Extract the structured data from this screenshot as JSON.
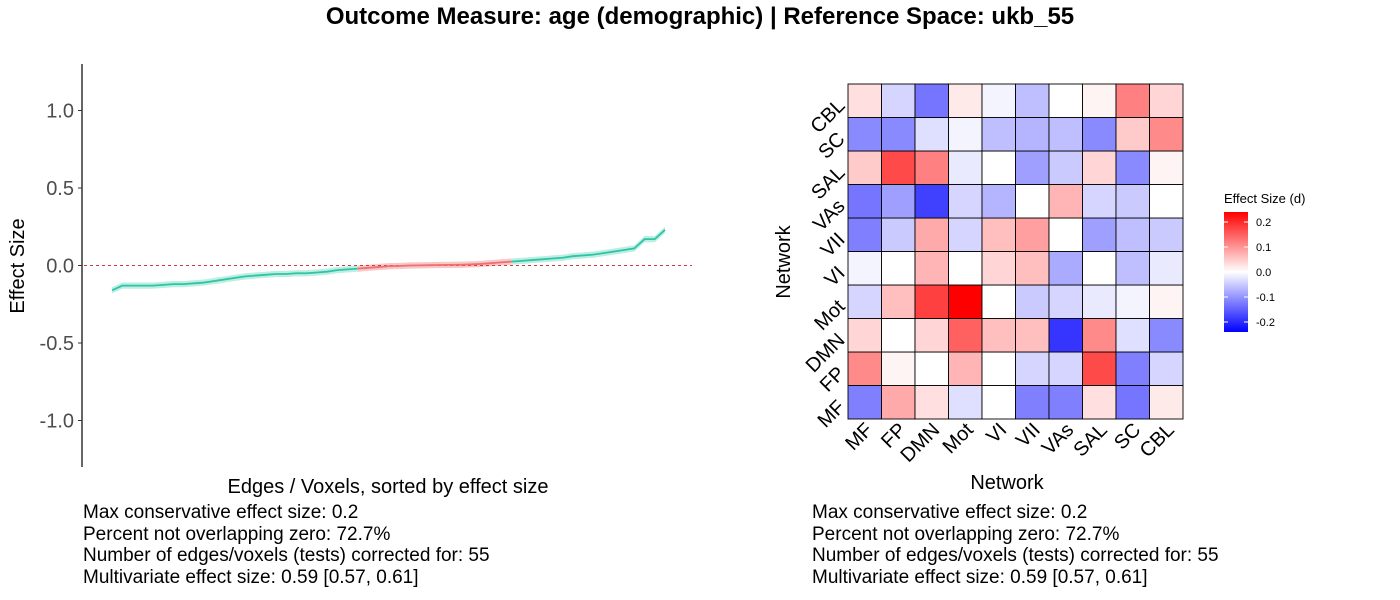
{
  "title": "Outcome Measure: age (demographic)   |  Reference Space: ukb_55",
  "colors": {
    "nonzero_line": "#2ec4a6",
    "nonzero_band": "#bdeee2",
    "zero_line": "#f07070",
    "zero_band": "#f8c7c7",
    "reference_line": "#d43a3a",
    "heat_low": "#0000ff",
    "heat_mid": "#ffffff",
    "heat_high": "#ff0000"
  },
  "chart_data": [
    {
      "type": "line",
      "xlabel": "Edges / Voxels, sorted by effect size",
      "ylabel": "Effect Size",
      "ylim": [
        -1.3,
        1.3
      ],
      "y_ticks": [
        -1.0,
        -0.5,
        0.0,
        0.5,
        1.0
      ],
      "y_tick_labels": [
        "-1.0",
        "-0.5",
        "0.0",
        "0.5",
        "1.0"
      ],
      "reference_line_y": 0,
      "x": [
        1,
        2,
        3,
        4,
        5,
        6,
        7,
        8,
        9,
        10,
        11,
        12,
        13,
        14,
        15,
        16,
        17,
        18,
        19,
        20,
        21,
        22,
        23,
        24,
        25,
        26,
        27,
        28,
        29,
        30,
        31,
        32,
        33,
        34,
        35,
        36,
        37,
        38,
        39,
        40,
        41,
        42,
        43,
        44,
        45,
        46,
        47,
        48,
        49,
        50,
        51,
        52,
        53,
        54,
        55
      ],
      "values": [
        -0.16,
        -0.13,
        -0.13,
        -0.13,
        -0.13,
        -0.125,
        -0.12,
        -0.12,
        -0.115,
        -0.11,
        -0.1,
        -0.09,
        -0.08,
        -0.07,
        -0.065,
        -0.06,
        -0.055,
        -0.055,
        -0.05,
        -0.05,
        -0.045,
        -0.04,
        -0.03,
        -0.025,
        -0.02,
        -0.015,
        -0.01,
        -0.005,
        -0.003,
        0.0,
        0.001,
        0.002,
        0.003,
        0.004,
        0.005,
        0.007,
        0.01,
        0.015,
        0.02,
        0.025,
        0.03,
        0.035,
        0.04,
        0.045,
        0.05,
        0.06,
        0.065,
        0.07,
        0.08,
        0.09,
        0.1,
        0.11,
        0.17,
        0.17,
        0.23
      ],
      "lower": [
        -0.18,
        -0.15,
        -0.15,
        -0.15,
        -0.15,
        -0.145,
        -0.14,
        -0.14,
        -0.135,
        -0.13,
        -0.12,
        -0.11,
        -0.1,
        -0.09,
        -0.085,
        -0.08,
        -0.075,
        -0.075,
        -0.07,
        -0.07,
        -0.065,
        -0.06,
        -0.05,
        -0.045,
        -0.04,
        -0.035,
        -0.03,
        -0.025,
        -0.023,
        -0.02,
        -0.019,
        -0.018,
        -0.017,
        -0.016,
        -0.015,
        -0.013,
        -0.01,
        -0.005,
        0.0,
        0.005,
        0.01,
        0.015,
        0.02,
        0.025,
        0.03,
        0.04,
        0.045,
        0.05,
        0.06,
        0.07,
        0.08,
        0.09,
        0.15,
        0.15,
        0.21
      ],
      "upper": [
        -0.14,
        -0.11,
        -0.11,
        -0.11,
        -0.11,
        -0.105,
        -0.1,
        -0.1,
        -0.095,
        -0.09,
        -0.08,
        -0.07,
        -0.06,
        -0.05,
        -0.045,
        -0.04,
        -0.035,
        -0.035,
        -0.03,
        -0.03,
        -0.025,
        -0.02,
        -0.01,
        -0.005,
        0.0,
        0.005,
        0.01,
        0.015,
        0.017,
        0.02,
        0.021,
        0.022,
        0.023,
        0.024,
        0.025,
        0.027,
        0.03,
        0.035,
        0.04,
        0.045,
        0.05,
        0.055,
        0.06,
        0.065,
        0.07,
        0.08,
        0.085,
        0.09,
        0.1,
        0.11,
        0.12,
        0.13,
        0.19,
        0.19,
        0.25
      ],
      "overlap_range": [
        25,
        40
      ],
      "stats": [
        "Max conservative effect size: 0.2",
        "Percent not overlapping zero: 72.7%",
        "Number of edges/voxels (tests) corrected for: 55",
        "Multivariate effect size: 0.59 [0.57, 0.61]"
      ]
    },
    {
      "type": "heatmap",
      "xlabel": "Network",
      "ylabel": "Network",
      "x_categories": [
        "MF",
        "FP",
        "DMN",
        "Mot",
        "VI",
        "VII",
        "VAs",
        "SAL",
        "SC",
        "CBL"
      ],
      "y_categories": [
        "MF",
        "FP",
        "DMN",
        "Mot",
        "VI",
        "VII",
        "VAs",
        "SAL",
        "SC",
        "CBL"
      ],
      "values": [
        [
          -0.12,
          0.08,
          0.03,
          -0.03,
          0.0,
          -0.12,
          -0.12,
          0.03,
          -0.13,
          0.02
        ],
        [
          0.11,
          0.01,
          0.0,
          0.07,
          0.0,
          -0.04,
          -0.04,
          0.17,
          -0.12,
          -0.04
        ],
        [
          0.04,
          0.0,
          0.04,
          0.15,
          0.06,
          0.06,
          -0.19,
          0.11,
          -0.03,
          -0.11
        ],
        [
          -0.04,
          0.06,
          0.18,
          0.26,
          0.0,
          -0.05,
          -0.04,
          -0.02,
          -0.01,
          0.01
        ],
        [
          -0.01,
          0.0,
          0.07,
          0.0,
          0.04,
          0.06,
          -0.08,
          0.0,
          -0.06,
          -0.02
        ],
        [
          -0.12,
          -0.05,
          0.08,
          -0.04,
          0.06,
          0.09,
          0.0,
          -0.09,
          -0.06,
          -0.05
        ],
        [
          -0.13,
          -0.09,
          -0.18,
          -0.04,
          -0.07,
          0.0,
          0.07,
          -0.04,
          -0.05,
          0.0
        ],
        [
          0.05,
          0.17,
          0.12,
          -0.02,
          0.0,
          -0.09,
          -0.05,
          0.04,
          -0.11,
          0.01
        ],
        [
          -0.11,
          -0.11,
          -0.03,
          -0.01,
          -0.06,
          -0.07,
          -0.06,
          -0.11,
          0.05,
          0.11
        ],
        [
          0.03,
          -0.04,
          -0.13,
          0.02,
          -0.01,
          -0.06,
          0.0,
          0.01,
          0.12,
          0.04
        ]
      ],
      "legend": {
        "title": "Effect Size (d)",
        "min": -0.24,
        "max": 0.24,
        "ticks": [
          0.2,
          0.1,
          0.0,
          -0.1,
          -0.2
        ],
        "tick_labels": [
          "0.2",
          "0.1",
          "0.0",
          "-0.1",
          "-0.2"
        ],
        "position": "right"
      },
      "stats": [
        "Max conservative effect size: 0.2",
        "Percent not overlapping zero: 72.7%",
        "Number of edges/voxels (tests) corrected for: 55",
        "Multivariate effect size: 0.59 [0.57, 0.61]"
      ]
    }
  ]
}
